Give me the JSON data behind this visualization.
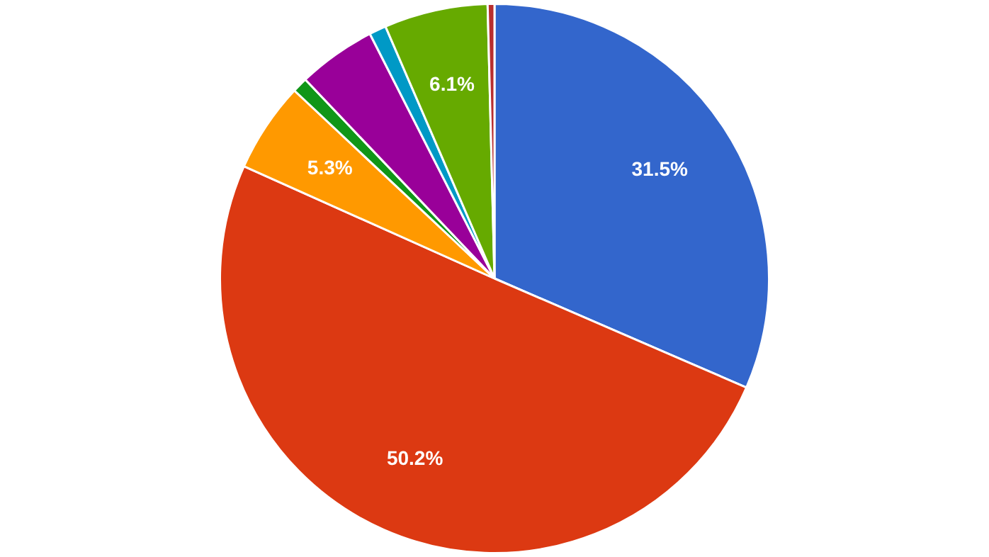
{
  "chart_data": {
    "type": "pie",
    "categories": [
      null,
      null,
      null,
      null,
      null,
      null,
      null,
      null
    ],
    "values": [
      31.5,
      50.2,
      5.3,
      0.9,
      4.6,
      1.0,
      6.1,
      0.4
    ],
    "colors": [
      "#3366cc",
      "#dc3912",
      "#ff9900",
      "#109618",
      "#990099",
      "#0099c6",
      "#66aa00",
      "#b82e2e"
    ],
    "value_labels": [
      "31.5%",
      "50.2%",
      "5.3%",
      null,
      null,
      null,
      "6.1%",
      null
    ],
    "legend": false
  }
}
